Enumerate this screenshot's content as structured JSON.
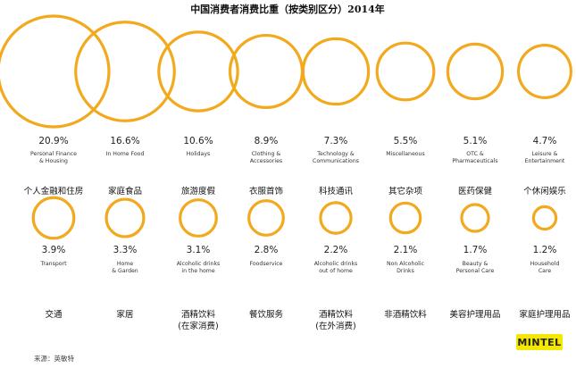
{
  "chart_data": {
    "type": "bubble",
    "title": "中国消费者消费比重（按类别区分）2014年",
    "unit": "%",
    "circle_color": "#f2a91d",
    "items": [
      {
        "value": 20.9,
        "label": "20.9%",
        "en": [
          "Personal Finance",
          "& Housing"
        ],
        "zh": [
          "个人金融和住房"
        ]
      },
      {
        "value": 16.6,
        "label": "16.6%",
        "en": [
          "In Home Food"
        ],
        "zh": [
          "家庭食品"
        ]
      },
      {
        "value": 10.6,
        "label": "10.6%",
        "en": [
          "Holidays"
        ],
        "zh": [
          "旅游度假"
        ]
      },
      {
        "value": 8.9,
        "label": "8.9%",
        "en": [
          "Clothing &",
          "Accessories"
        ],
        "zh": [
          "衣服首饰"
        ]
      },
      {
        "value": 7.3,
        "label": "7.3%",
        "en": [
          "Technology &",
          "Communications"
        ],
        "zh": [
          "科技通讯"
        ]
      },
      {
        "value": 5.5,
        "label": "5.5%",
        "en": [
          "Miscellaneous"
        ],
        "zh": [
          "其它杂项"
        ]
      },
      {
        "value": 5.1,
        "label": "5.1%",
        "en": [
          "OTC &",
          "Pharmaceuticals"
        ],
        "zh": [
          "医药保健"
        ]
      },
      {
        "value": 4.7,
        "label": "4.7%",
        "en": [
          "Leisure &",
          "Entertainment"
        ],
        "zh": [
          "个休闲娱乐"
        ]
      },
      {
        "value": 3.9,
        "label": "3.9%",
        "en": [
          "Transport"
        ],
        "zh": [
          "交通"
        ]
      },
      {
        "value": 3.3,
        "label": "3.3%",
        "en": [
          "Home",
          "& Garden"
        ],
        "zh": [
          "家居"
        ]
      },
      {
        "value": 3.1,
        "label": "3.1%",
        "en": [
          "Alcoholic drinks",
          "in the home"
        ],
        "zh": [
          "酒精饮料",
          "(在家消费)"
        ]
      },
      {
        "value": 2.8,
        "label": "2.8%",
        "en": [
          "Foodservice"
        ],
        "zh": [
          "餐饮服务"
        ]
      },
      {
        "value": 2.2,
        "label": "2.2%",
        "en": [
          "Alcoholic drinks",
          "out of home"
        ],
        "zh": [
          "酒精饮料",
          "(在外消费)"
        ]
      },
      {
        "value": 2.1,
        "label": "2.1%",
        "en": [
          "Non Alcoholic",
          "Drinks"
        ],
        "zh": [
          "非酒精饮料"
        ]
      },
      {
        "value": 1.7,
        "label": "1.7%",
        "en": [
          "Beauty &",
          "Personal Care"
        ],
        "zh": [
          "美容护理用品"
        ]
      },
      {
        "value": 1.2,
        "label": "1.2%",
        "en": [
          "Household",
          "Care"
        ],
        "zh": [
          "家庭护理用品"
        ]
      }
    ]
  },
  "source": "来源：英敏特",
  "logo": {
    "text": "MINTEL",
    "color": "#f5e800"
  }
}
